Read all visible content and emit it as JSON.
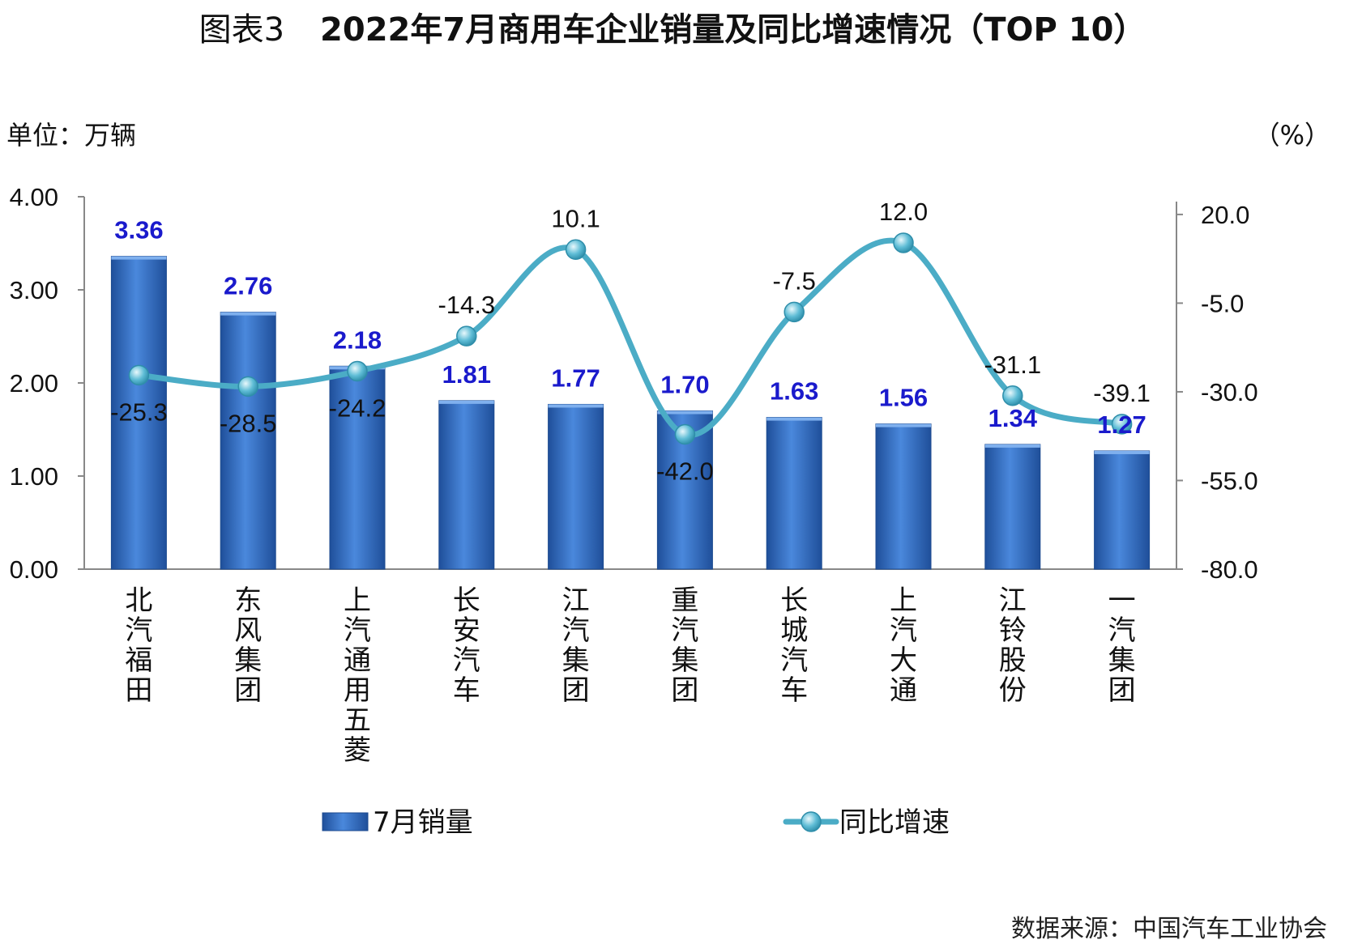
{
  "title": {
    "prefix": "图表3",
    "main": "2022年7月商用车企业销量及同比增速情况（TOP 10）"
  },
  "unit_left": "单位：万辆",
  "unit_right": "（%）",
  "source": "数据来源：中国汽车工业协会",
  "colors": {
    "bar": "#3a78cc",
    "line": "#4bacc6"
  },
  "chart_data": {
    "type": "bar",
    "categories": [
      "北汽福田",
      "东风集团",
      "上汽通用五菱",
      "长安汽车",
      "江汽集团",
      "重汽集团",
      "长城汽车",
      "上汽大通",
      "江铃股份",
      "一汽集团"
    ],
    "series": [
      {
        "name": "7月销量",
        "type": "bar",
        "axis": "left",
        "values": [
          3.36,
          2.76,
          2.18,
          1.81,
          1.77,
          1.7,
          1.63,
          1.56,
          1.34,
          1.27
        ],
        "labels": [
          "3.36",
          "2.76",
          "2.18",
          "1.81",
          "1.77",
          "1.70",
          "1.63",
          "1.56",
          "1.34",
          "1.27"
        ]
      },
      {
        "name": "同比增速",
        "type": "line",
        "axis": "right",
        "values": [
          -25.3,
          -28.5,
          -24.2,
          -14.3,
          10.1,
          -42.0,
          -7.5,
          12.0,
          -31.1,
          -39.1
        ],
        "labels": [
          "-25.3",
          "-28.5",
          "-24.2",
          "-14.3",
          "10.1",
          "-42.0",
          "-7.5",
          "12.0",
          "-31.1",
          "-39.1"
        ]
      }
    ],
    "y_left": {
      "min": 0,
      "max": 4,
      "ticks": [
        0,
        1,
        2,
        3,
        4
      ],
      "tick_labels": [
        "0.00",
        "1.00",
        "2.00",
        "3.00",
        "4.00"
      ]
    },
    "y_right": {
      "min": -80,
      "max": 25,
      "ticks": [
        -80,
        -55,
        -30,
        -5,
        20
      ],
      "tick_labels": [
        "-80.0",
        "-55.0",
        "-30.0",
        "-5.0",
        "20.0"
      ]
    },
    "grid": false,
    "legend": "bottom"
  }
}
